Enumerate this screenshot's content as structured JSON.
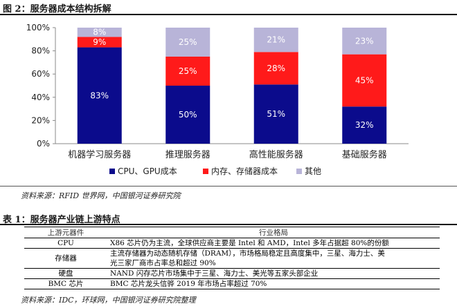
{
  "figure": {
    "title": "图 2：服务器成本结构拆解",
    "source": "资料来源：RFID 世界网，中国银河证券研究院"
  },
  "chart_data": {
    "type": "bar",
    "stacked": true,
    "categories": [
      "机器学习服务器",
      "推理服务器",
      "高性能服务器",
      "基础服务器"
    ],
    "series": [
      {
        "name": "CPU、GPU成本",
        "color": "#0b0b8c",
        "values": [
          83,
          50,
          51,
          32
        ],
        "labels": [
          "83%",
          "50%",
          "51%",
          "32%"
        ]
      },
      {
        "name": "内存、存储器成本",
        "color": "#ff1a1a",
        "values": [
          9,
          25,
          28,
          45
        ],
        "labels": [
          "9%",
          "25%",
          "28%",
          "45%"
        ]
      },
      {
        "name": "其他",
        "color": "#b8b4d8",
        "values": [
          8,
          25,
          21,
          23
        ],
        "labels": [
          "8%",
          "25%",
          "21%",
          "23%"
        ]
      }
    ],
    "ylim": [
      0,
      100
    ],
    "yticks": [
      0,
      20,
      40,
      60,
      80,
      100
    ],
    "ytick_labels": [
      "0%",
      "20%",
      "40%",
      "60%",
      "80%",
      "100%"
    ],
    "grid": false,
    "legend_position": "bottom"
  },
  "table": {
    "title": "表 1：服务器产业链上游特点",
    "headers": [
      "上游元器件",
      "行业格局"
    ],
    "rows": [
      {
        "component": "CPU",
        "lines": [
          "X86 芯片仍为主流，全球供应商主要是 Intel 和 AMD，Intel 多年占据超 80%的份额"
        ]
      },
      {
        "component": "存储器",
        "lines": [
          "主流存储器为动态随机存储（DRAM），市场格局稳定且高度集中，三星、海力士、美",
          "光三家厂商市占率总和超过 90%"
        ]
      },
      {
        "component": "硬盘",
        "lines": [
          "NAND 闪存芯片市场集中于三星、海力士、美光等五家头部企业"
        ]
      },
      {
        "component": "BMC 芯片",
        "lines": [
          "BMC 芯片龙头信骅 2019 年市场占率超过 70%"
        ]
      }
    ],
    "source": "资料来源：IDC，环球网，中国银河证券研究院整理"
  }
}
